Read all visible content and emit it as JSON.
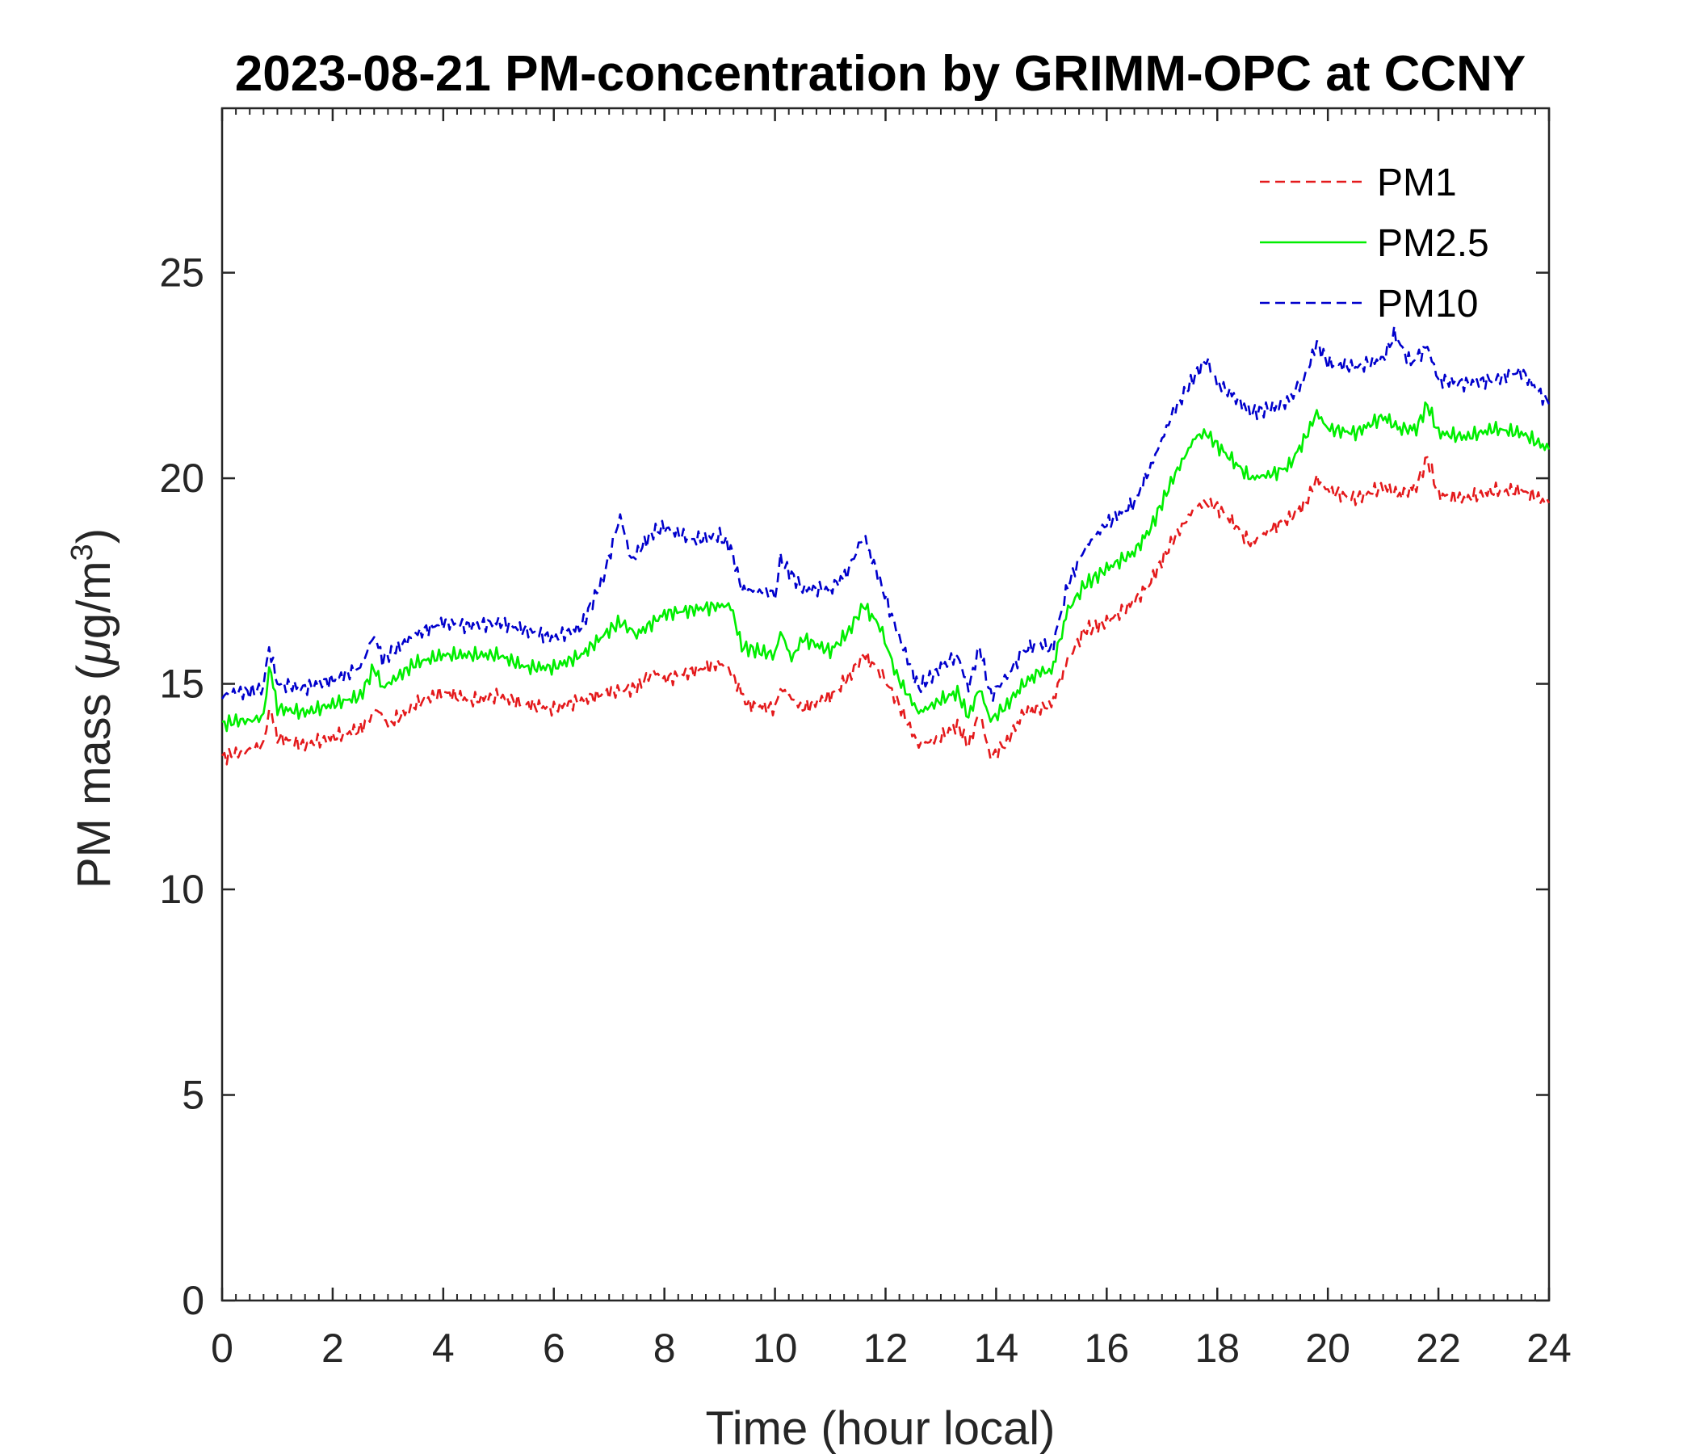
{
  "chart_data": {
    "type": "line",
    "title": "2023-08-21 PM-concentration by GRIMM-OPC at CCNY",
    "xlabel": "Time (hour local)",
    "ylabel_parts": {
      "text": "PM mass (",
      "mu": "μ",
      "unit": "g/m",
      "sup": "3",
      "close": ")"
    },
    "xlim": [
      0,
      24
    ],
    "ylim": [
      0,
      29
    ],
    "xticks": [
      0,
      2,
      4,
      6,
      8,
      10,
      12,
      14,
      16,
      18,
      20,
      22,
      24
    ],
    "yticks": [
      0,
      5,
      10,
      15,
      20,
      25
    ],
    "grid": false,
    "legend_position": "top-right",
    "series": [
      {
        "name": "PM1",
        "color": "#e41a1c",
        "dash": "dashed",
        "points": [
          [
            0,
            13.2
          ],
          [
            0.25,
            13.3
          ],
          [
            0.5,
            13.4
          ],
          [
            0.75,
            13.5
          ],
          [
            0.85,
            14.5
          ],
          [
            1.0,
            13.7
          ],
          [
            1.5,
            13.5
          ],
          [
            2.0,
            13.7
          ],
          [
            2.5,
            13.9
          ],
          [
            2.8,
            14.4
          ],
          [
            3.0,
            14.0
          ],
          [
            3.5,
            14.5
          ],
          [
            4.0,
            14.8
          ],
          [
            4.5,
            14.6
          ],
          [
            5.0,
            14.7
          ],
          [
            5.5,
            14.5
          ],
          [
            6.0,
            14.4
          ],
          [
            6.5,
            14.6
          ],
          [
            7.0,
            14.8
          ],
          [
            7.5,
            14.9
          ],
          [
            7.8,
            15.3
          ],
          [
            8.0,
            15.1
          ],
          [
            8.5,
            15.3
          ],
          [
            9.0,
            15.5
          ],
          [
            9.2,
            15.3
          ],
          [
            9.5,
            14.5
          ],
          [
            10.0,
            14.4
          ],
          [
            10.1,
            14.9
          ],
          [
            10.5,
            14.4
          ],
          [
            11.0,
            14.7
          ],
          [
            11.3,
            15.1
          ],
          [
            11.6,
            15.7
          ],
          [
            11.9,
            15.3
          ],
          [
            12.2,
            14.6
          ],
          [
            12.6,
            13.5
          ],
          [
            13.0,
            13.7
          ],
          [
            13.3,
            14.0
          ],
          [
            13.5,
            13.5
          ],
          [
            13.7,
            14.3
          ],
          [
            13.9,
            13.2
          ],
          [
            14.2,
            13.6
          ],
          [
            14.5,
            14.3
          ],
          [
            14.8,
            14.4
          ],
          [
            15.0,
            14.5
          ],
          [
            15.3,
            15.6
          ],
          [
            15.6,
            16.3
          ],
          [
            16.0,
            16.5
          ],
          [
            16.5,
            17.0
          ],
          [
            16.8,
            17.5
          ],
          [
            17.2,
            18.5
          ],
          [
            17.6,
            19.3
          ],
          [
            17.8,
            19.4
          ],
          [
            18.0,
            19.3
          ],
          [
            18.3,
            18.9
          ],
          [
            18.6,
            18.4
          ],
          [
            19.0,
            18.8
          ],
          [
            19.3,
            19.0
          ],
          [
            19.6,
            19.4
          ],
          [
            19.8,
            20.0
          ],
          [
            20.0,
            19.7
          ],
          [
            20.5,
            19.5
          ],
          [
            21.0,
            19.8
          ],
          [
            21.3,
            19.6
          ],
          [
            21.6,
            19.8
          ],
          [
            21.8,
            20.5
          ],
          [
            22.0,
            19.6
          ],
          [
            22.5,
            19.5
          ],
          [
            23.0,
            19.7
          ],
          [
            23.5,
            19.7
          ],
          [
            24.0,
            19.4
          ]
        ]
      },
      {
        "name": "PM2.5",
        "color": "#00ee00",
        "dash": "solid",
        "points": [
          [
            0,
            14.0
          ],
          [
            0.25,
            14.1
          ],
          [
            0.5,
            14.1
          ],
          [
            0.75,
            14.2
          ],
          [
            0.85,
            15.5
          ],
          [
            1.0,
            14.4
          ],
          [
            1.5,
            14.3
          ],
          [
            2.0,
            14.5
          ],
          [
            2.5,
            14.7
          ],
          [
            2.75,
            15.4
          ],
          [
            2.9,
            14.9
          ],
          [
            3.5,
            15.5
          ],
          [
            4.0,
            15.7
          ],
          [
            4.5,
            15.7
          ],
          [
            5.0,
            15.7
          ],
          [
            5.5,
            15.4
          ],
          [
            6.0,
            15.4
          ],
          [
            6.5,
            15.7
          ],
          [
            7.0,
            16.3
          ],
          [
            7.2,
            16.5
          ],
          [
            7.5,
            16.2
          ],
          [
            8.0,
            16.7
          ],
          [
            8.5,
            16.8
          ],
          [
            9.0,
            16.9
          ],
          [
            9.2,
            16.9
          ],
          [
            9.4,
            15.9
          ],
          [
            10.0,
            15.7
          ],
          [
            10.1,
            16.3
          ],
          [
            10.3,
            15.6
          ],
          [
            10.5,
            16.1
          ],
          [
            11.0,
            15.8
          ],
          [
            11.3,
            16.2
          ],
          [
            11.6,
            16.9
          ],
          [
            11.9,
            16.4
          ],
          [
            12.2,
            15.2
          ],
          [
            12.6,
            14.3
          ],
          [
            13.0,
            14.6
          ],
          [
            13.3,
            14.8
          ],
          [
            13.5,
            14.2
          ],
          [
            13.7,
            14.9
          ],
          [
            13.9,
            14.1
          ],
          [
            14.2,
            14.5
          ],
          [
            14.5,
            15.0
          ],
          [
            14.8,
            15.3
          ],
          [
            15.0,
            15.3
          ],
          [
            15.3,
            16.8
          ],
          [
            15.6,
            17.4
          ],
          [
            16.0,
            17.8
          ],
          [
            16.5,
            18.2
          ],
          [
            16.8,
            18.8
          ],
          [
            17.2,
            20.0
          ],
          [
            17.6,
            21.0
          ],
          [
            17.8,
            21.1
          ],
          [
            18.0,
            20.8
          ],
          [
            18.3,
            20.4
          ],
          [
            18.6,
            20.0
          ],
          [
            19.0,
            20.1
          ],
          [
            19.3,
            20.3
          ],
          [
            19.6,
            21.0
          ],
          [
            19.8,
            21.6
          ],
          [
            20.0,
            21.2
          ],
          [
            20.5,
            21.1
          ],
          [
            21.0,
            21.5
          ],
          [
            21.3,
            21.2
          ],
          [
            21.6,
            21.2
          ],
          [
            21.8,
            21.8
          ],
          [
            22.0,
            21.1
          ],
          [
            22.5,
            21.0
          ],
          [
            23.0,
            21.2
          ],
          [
            23.5,
            21.1
          ],
          [
            24.0,
            20.7
          ]
        ]
      },
      {
        "name": "PM10",
        "color": "#0000cc",
        "dash": "dashed",
        "points": [
          [
            0,
            14.7
          ],
          [
            0.25,
            14.8
          ],
          [
            0.5,
            14.8
          ],
          [
            0.75,
            14.9
          ],
          [
            0.85,
            15.9
          ],
          [
            1.0,
            15.0
          ],
          [
            1.5,
            14.9
          ],
          [
            2.0,
            15.1
          ],
          [
            2.5,
            15.4
          ],
          [
            2.75,
            16.2
          ],
          [
            2.9,
            15.6
          ],
          [
            3.5,
            16.2
          ],
          [
            4.0,
            16.5
          ],
          [
            4.5,
            16.4
          ],
          [
            5.0,
            16.5
          ],
          [
            5.5,
            16.3
          ],
          [
            6.0,
            16.1
          ],
          [
            6.5,
            16.4
          ],
          [
            6.9,
            17.6
          ],
          [
            7.2,
            19.1
          ],
          [
            7.4,
            18.0
          ],
          [
            7.8,
            18.7
          ],
          [
            8.0,
            18.8
          ],
          [
            8.5,
            18.5
          ],
          [
            9.0,
            18.6
          ],
          [
            9.2,
            18.3
          ],
          [
            9.4,
            17.3
          ],
          [
            10.0,
            17.2
          ],
          [
            10.1,
            18.0
          ],
          [
            10.5,
            17.3
          ],
          [
            11.0,
            17.3
          ],
          [
            11.3,
            17.7
          ],
          [
            11.6,
            18.6
          ],
          [
            11.9,
            17.5
          ],
          [
            12.2,
            16.3
          ],
          [
            12.6,
            14.9
          ],
          [
            13.0,
            15.4
          ],
          [
            13.3,
            15.7
          ],
          [
            13.5,
            14.9
          ],
          [
            13.7,
            15.9
          ],
          [
            13.9,
            14.7
          ],
          [
            14.2,
            15.2
          ],
          [
            14.5,
            15.8
          ],
          [
            14.8,
            16.0
          ],
          [
            15.0,
            15.8
          ],
          [
            15.3,
            17.4
          ],
          [
            15.6,
            18.3
          ],
          [
            16.0,
            18.9
          ],
          [
            16.5,
            19.4
          ],
          [
            16.8,
            20.3
          ],
          [
            17.2,
            21.6
          ],
          [
            17.6,
            22.5
          ],
          [
            17.8,
            22.9
          ],
          [
            18.0,
            22.3
          ],
          [
            18.3,
            22.0
          ],
          [
            18.6,
            21.6
          ],
          [
            19.0,
            21.7
          ],
          [
            19.3,
            21.9
          ],
          [
            19.6,
            22.5
          ],
          [
            19.8,
            23.3
          ],
          [
            20.0,
            22.8
          ],
          [
            20.5,
            22.7
          ],
          [
            21.0,
            22.9
          ],
          [
            21.2,
            23.5
          ],
          [
            21.5,
            22.8
          ],
          [
            21.8,
            23.2
          ],
          [
            22.0,
            22.4
          ],
          [
            22.5,
            22.3
          ],
          [
            23.0,
            22.4
          ],
          [
            23.5,
            22.6
          ],
          [
            24.0,
            21.8
          ]
        ]
      }
    ]
  }
}
